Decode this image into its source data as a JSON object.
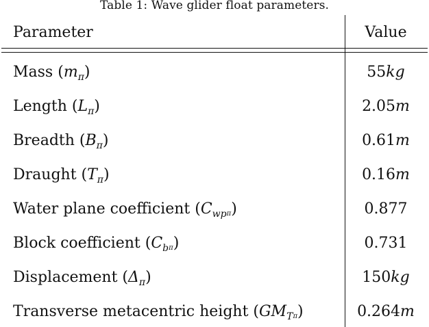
{
  "caption": "Table 1: Wave glider float parameters.",
  "header": {
    "param": "Parameter",
    "value": "Value"
  },
  "rows": [
    {
      "label": "Mass (",
      "sym": "m",
      "sub": "π",
      "subsub": "",
      "close": ")",
      "num": "55",
      "unit": "kg"
    },
    {
      "label": "Length (",
      "sym": "L",
      "sub": "π",
      "subsub": "",
      "close": ")",
      "num": "2.05",
      "unit": "m"
    },
    {
      "label": "Breadth (",
      "sym": "B",
      "sub": "π",
      "subsub": "",
      "close": ")",
      "num": "0.61",
      "unit": "m"
    },
    {
      "label": "Draught (",
      "sym": "T",
      "sub": "π",
      "subsub": "",
      "close": ")",
      "num": "0.16",
      "unit": "m"
    },
    {
      "label": "Water plane coefficient (",
      "sym": "C",
      "sub": "wp",
      "subsub": "π",
      "close": ")",
      "num": "0.877",
      "unit": ""
    },
    {
      "label": "Block coefficient (",
      "sym": "C",
      "sub": "b",
      "subsub": "π",
      "close": ")",
      "num": "0.731",
      "unit": ""
    },
    {
      "label": "Displacement (",
      "sym": "Δ",
      "sub": "π",
      "subsub": "",
      "close": ")",
      "num": "150",
      "unit": "kg"
    },
    {
      "label": "Transverse metacentric height (",
      "sym": "GM",
      "sub": "T",
      "subsub": "π",
      "close": ")",
      "num": "0.264",
      "unit": "m"
    }
  ]
}
